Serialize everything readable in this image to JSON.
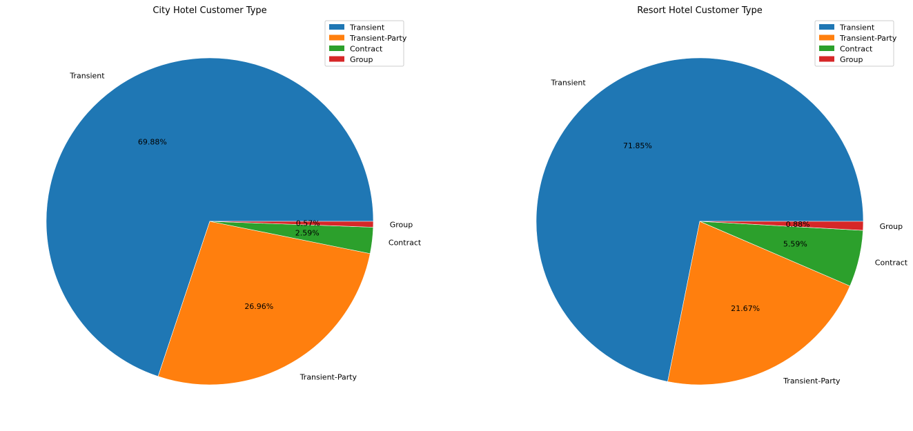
{
  "chart_data": [
    {
      "type": "pie",
      "title": "City Hotel Customer Type",
      "categories": [
        "Transient",
        "Transient-Party",
        "Contract",
        "Group"
      ],
      "values": [
        69.88,
        26.96,
        2.59,
        0.57
      ],
      "value_labels": [
        "69.88%",
        "26.96%",
        "2.59%",
        "0.57%"
      ],
      "colors": [
        "#1f77b4",
        "#ff7f0e",
        "#2ca02c",
        "#d62728"
      ],
      "start_angle": 0,
      "direction": "counterclockwise",
      "legend": {
        "position": "top-right",
        "entries": [
          "Transient",
          "Transient-Party",
          "Contract",
          "Group"
        ]
      }
    },
    {
      "type": "pie",
      "title": "Resort Hotel Customer Type",
      "categories": [
        "Transient",
        "Transient-Party",
        "Contract",
        "Group"
      ],
      "values": [
        71.85,
        21.67,
        5.59,
        0.88
      ],
      "value_labels": [
        "71.85%",
        "21.67%",
        "5.59%",
        "0.88%"
      ],
      "colors": [
        "#1f77b4",
        "#ff7f0e",
        "#2ca02c",
        "#d62728"
      ],
      "start_angle": 0,
      "direction": "counterclockwise",
      "legend": {
        "position": "top-right",
        "entries": [
          "Transient",
          "Transient-Party",
          "Contract",
          "Group"
        ]
      }
    }
  ]
}
